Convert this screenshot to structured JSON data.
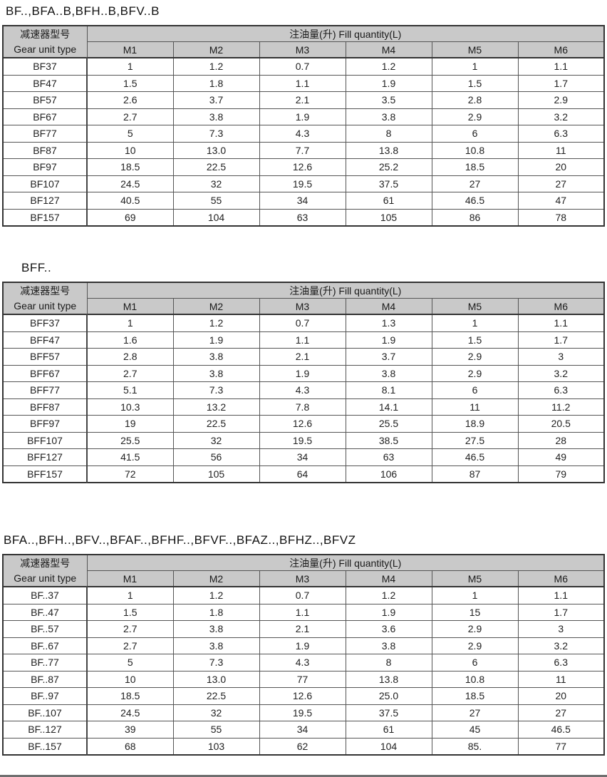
{
  "tables": [
    {
      "title": "BF..,BFA..B,BFH..B,BFV..B",
      "header": {
        "unit_type_cn": "减速器型号",
        "unit_type_en": "Gear unit type",
        "fill_quantity": "注油量(升) Fill quantity(L)",
        "columns": [
          "M1",
          "M2",
          "M3",
          "M4",
          "M5",
          "M6"
        ]
      },
      "rows": [
        {
          "model": "BF37",
          "values": [
            "1",
            "1.2",
            "0.7",
            "1.2",
            "1",
            "1.1"
          ]
        },
        {
          "model": "BF47",
          "values": [
            "1.5",
            "1.8",
            "1.1",
            "1.9",
            "1.5",
            "1.7"
          ]
        },
        {
          "model": "BF57",
          "values": [
            "2.6",
            "3.7",
            "2.1",
            "3.5",
            "2.8",
            "2.9"
          ]
        },
        {
          "model": "BF67",
          "values": [
            "2.7",
            "3.8",
            "1.9",
            "3.8",
            "2.9",
            "3.2"
          ]
        },
        {
          "model": "BF77",
          "values": [
            "5",
            "7.3",
            "4.3",
            "8",
            "6",
            "6.3"
          ]
        },
        {
          "model": "BF87",
          "values": [
            "10",
            "13.0",
            "7.7",
            "13.8",
            "10.8",
            "11"
          ]
        },
        {
          "model": "BF97",
          "values": [
            "18.5",
            "22.5",
            "12.6",
            "25.2",
            "18.5",
            "20"
          ]
        },
        {
          "model": "BF107",
          "values": [
            "24.5",
            "32",
            "19.5",
            "37.5",
            "27",
            "27"
          ]
        },
        {
          "model": "BF127",
          "values": [
            "40.5",
            "55",
            "34",
            "61",
            "46.5",
            "47"
          ]
        },
        {
          "model": "BF157",
          "values": [
            "69",
            "104",
            "63",
            "105",
            "86",
            "78"
          ]
        }
      ]
    },
    {
      "title": "BFF..",
      "header": {
        "unit_type_cn": "减速器型号",
        "unit_type_en": "Gear unit type",
        "fill_quantity": "注油量(升) Fill quantity(L)",
        "columns": [
          "M1",
          "M2",
          "M3",
          "M4",
          "M5",
          "M6"
        ]
      },
      "rows": [
        {
          "model": "BFF37",
          "values": [
            "1",
            "1.2",
            "0.7",
            "1.3",
            "1",
            "1.1"
          ]
        },
        {
          "model": "BFF47",
          "values": [
            "1.6",
            "1.9",
            "1.1",
            "1.9",
            "1.5",
            "1.7"
          ]
        },
        {
          "model": "BFF57",
          "values": [
            "2.8",
            "3.8",
            "2.1",
            "3.7",
            "2.9",
            "3"
          ]
        },
        {
          "model": "BFF67",
          "values": [
            "2.7",
            "3.8",
            "1.9",
            "3.8",
            "2.9",
            "3.2"
          ]
        },
        {
          "model": "BFF77",
          "values": [
            "5.1",
            "7.3",
            "4.3",
            "8.1",
            "6",
            "6.3"
          ]
        },
        {
          "model": "BFF87",
          "values": [
            "10.3",
            "13.2",
            "7.8",
            "14.1",
            "11",
            "11.2"
          ]
        },
        {
          "model": "BFF97",
          "values": [
            "19",
            "22.5",
            "12.6",
            "25.5",
            "18.9",
            "20.5"
          ]
        },
        {
          "model": "BFF107",
          "values": [
            "25.5",
            "32",
            "19.5",
            "38.5",
            "27.5",
            "28"
          ]
        },
        {
          "model": "BFF127",
          "values": [
            "41.5",
            "56",
            "34",
            "63",
            "46.5",
            "49"
          ]
        },
        {
          "model": "BFF157",
          "values": [
            "72",
            "105",
            "64",
            "106",
            "87",
            "79"
          ]
        }
      ]
    },
    {
      "title": "BFA..,BFH..,BFV..,BFAF..,BFHF..,BFVF..,BFAZ..,BFHZ..,BFVZ",
      "header": {
        "unit_type_cn": "减速器型号",
        "unit_type_en": "Gear unit type",
        "fill_quantity": "注油量(升) Fill quantity(L)",
        "columns": [
          "M1",
          "M2",
          "M3",
          "M4",
          "M5",
          "M6"
        ]
      },
      "rows": [
        {
          "model": "BF..37",
          "values": [
            "1",
            "1.2",
            "0.7",
            "1.2",
            "1",
            "1.1"
          ]
        },
        {
          "model": "BF..47",
          "values": [
            "1.5",
            "1.8",
            "1.1",
            "1.9",
            "15",
            "1.7"
          ]
        },
        {
          "model": "BF..57",
          "values": [
            "2.7",
            "3.8",
            "2.1",
            "3.6",
            "2.9",
            "3"
          ]
        },
        {
          "model": "BF..67",
          "values": [
            "2.7",
            "3.8",
            "1.9",
            "3.8",
            "2.9",
            "3.2"
          ]
        },
        {
          "model": "BF..77",
          "values": [
            "5",
            "7.3",
            "4.3",
            "8",
            "6",
            "6.3"
          ]
        },
        {
          "model": "BF..87",
          "values": [
            "10",
            "13.0",
            "77",
            "13.8",
            "10.8",
            "11"
          ]
        },
        {
          "model": "BF..97",
          "values": [
            "18.5",
            "22.5",
            "12.6",
            "25.0",
            "18.5",
            "20"
          ]
        },
        {
          "model": "BF..107",
          "values": [
            "24.5",
            "32",
            "19.5",
            "37.5",
            "27",
            "27"
          ]
        },
        {
          "model": "BF..127",
          "values": [
            "39",
            "55",
            "34",
            "61",
            "45",
            "46.5"
          ]
        },
        {
          "model": "BF..157",
          "values": [
            "68",
            "103",
            "62",
            "104",
            "85.",
            "77"
          ]
        }
      ]
    }
  ]
}
